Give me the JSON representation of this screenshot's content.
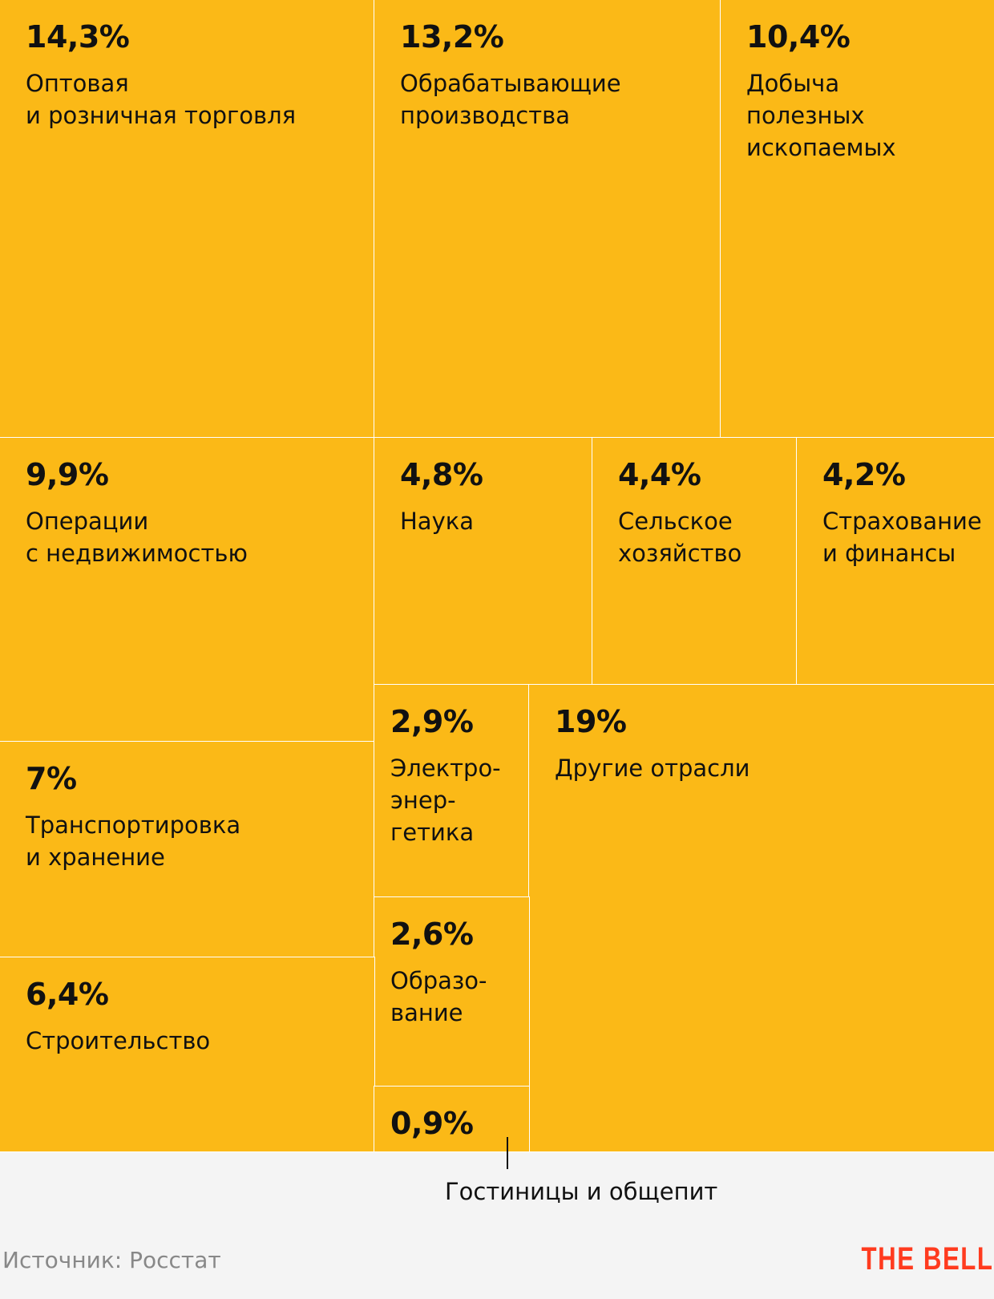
{
  "chart_data": {
    "type": "treemap",
    "title": "",
    "unit": "%",
    "items": [
      {
        "value_label": "14,3%",
        "value": 14.3,
        "label": "Оптовая\nи розничная торговля"
      },
      {
        "value_label": "13,2%",
        "value": 13.2,
        "label": "Обрабатывающие\nпроизводства"
      },
      {
        "value_label": "10,4%",
        "value": 10.4,
        "label": "Добыча\nполезных\nископаемых"
      },
      {
        "value_label": "9,9%",
        "value": 9.9,
        "label": "Операции\nс недвижимостью"
      },
      {
        "value_label": "4,8%",
        "value": 4.8,
        "label": "Наука"
      },
      {
        "value_label": "4,4%",
        "value": 4.4,
        "label": "Сельское\nхозяйство"
      },
      {
        "value_label": "4,2%",
        "value": 4.2,
        "label": "Страхование\nи финансы"
      },
      {
        "value_label": "7%",
        "value": 7,
        "label": "Транспортировка\nи хранение"
      },
      {
        "value_label": "2,9%",
        "value": 2.9,
        "label": "Электро-\nэнер-\nгетика"
      },
      {
        "value_label": "19%",
        "value": 19,
        "label": "Другие отрасли"
      },
      {
        "value_label": "2,6%",
        "value": 2.6,
        "label": "Образо-\nвание"
      },
      {
        "value_label": "6,4%",
        "value": 6.4,
        "label": "Строительство"
      },
      {
        "value_label": "0,9%",
        "value": 0.9,
        "label": ""
      }
    ],
    "callout_label": "Гостиницы и общепит",
    "source": "Источник: Росстат",
    "logo": "THE BELL",
    "colors": {
      "fill": "#fbb917",
      "border": "#ffffff",
      "logo": "#ff3b1f"
    }
  }
}
